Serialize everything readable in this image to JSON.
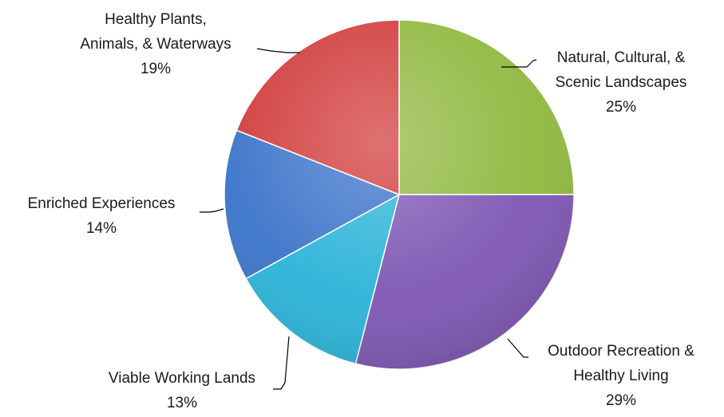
{
  "chart_data": {
    "type": "pie",
    "title": "",
    "start_angle_deg": 0,
    "direction": "clockwise",
    "slices": [
      {
        "label_lines": [
          "Natural, Cultural, &",
          "Scenic Landscapes"
        ],
        "pct_label": "25%",
        "value": 25,
        "color": "#8fb83d"
      },
      {
        "label_lines": [
          "Outdoor Recreation &",
          "Healthy Living"
        ],
        "pct_label": "29%",
        "value": 29,
        "color": "#7d55b3"
      },
      {
        "label_lines": [
          "Viable Working Lands"
        ],
        "pct_label": "13%",
        "value": 13,
        "color": "#2ab3d8"
      },
      {
        "label_lines": [
          "Enriched Experiences"
        ],
        "pct_label": "14%",
        "value": 14,
        "color": "#3a73c9"
      },
      {
        "label_lines": [
          "Healthy Plants,",
          "Animals, & Waterways"
        ],
        "pct_label": "19%",
        "value": 19,
        "color": "#d13b3b"
      }
    ]
  }
}
